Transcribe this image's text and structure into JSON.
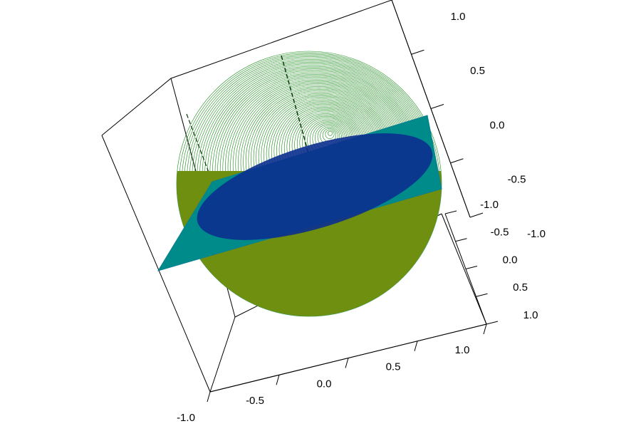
{
  "chart_data": {
    "type": "surface3d",
    "xlim": [
      -1,
      1
    ],
    "ylim": [
      -1,
      1
    ],
    "zlim": [
      -1,
      1
    ],
    "xticks": [
      {
        "value": -1,
        "label": "-1.0"
      },
      {
        "value": -0.5,
        "label": "-0.5"
      },
      {
        "value": 0,
        "label": "0.0"
      },
      {
        "value": 0.5,
        "label": "0.5"
      },
      {
        "value": 1,
        "label": "1.0"
      }
    ],
    "yticks": [
      {
        "value": -1,
        "label": "-1.0"
      },
      {
        "value": -0.5,
        "label": "-0.5"
      },
      {
        "value": 0,
        "label": "0.0"
      },
      {
        "value": 0.5,
        "label": "0.5"
      },
      {
        "value": 1,
        "label": "1.0"
      }
    ],
    "zticks": [
      {
        "value": -1,
        "label": "-1.0"
      },
      {
        "value": -0.5,
        "label": "-0.5"
      },
      {
        "value": 0,
        "label": "0.0"
      },
      {
        "value": 0.5,
        "label": "0.5"
      },
      {
        "value": 1,
        "label": "1.0"
      }
    ]
  }
}
